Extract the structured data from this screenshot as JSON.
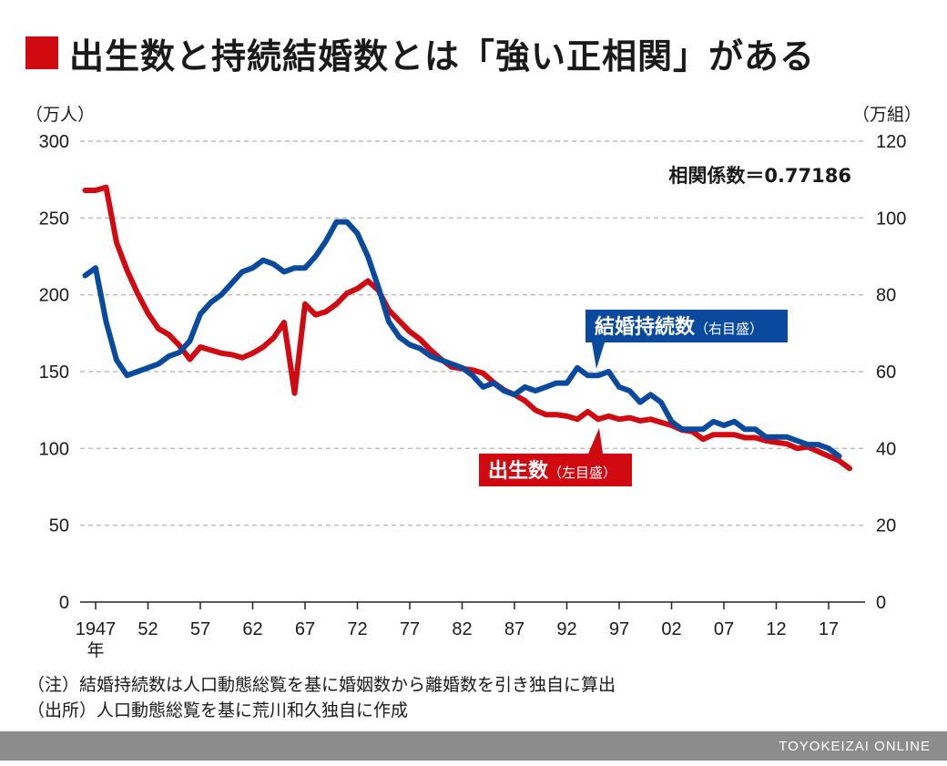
{
  "header": {
    "title": "出生数と持続結婚数とは「強い正相関」がある",
    "accent_color": "#d10a11"
  },
  "chart_data": {
    "type": "line",
    "correlation_text": "相関係数＝0.77186",
    "left_axis": {
      "unit_label": "（万人）",
      "ylim": [
        0,
        300
      ],
      "ticks": [
        0,
        50,
        100,
        150,
        200,
        250,
        300
      ]
    },
    "right_axis": {
      "unit_label": "（万組）",
      "ylim": [
        0,
        120
      ],
      "ticks": [
        0,
        20,
        40,
        60,
        80,
        100,
        120
      ]
    },
    "x_axis": {
      "range": [
        1947,
        2019
      ],
      "tick_values": [
        1947,
        1952,
        1957,
        1962,
        1967,
        1972,
        1977,
        1982,
        1987,
        1992,
        1997,
        2002,
        2007,
        2012,
        2017
      ],
      "tick_labels": [
        "1947",
        "52",
        "57",
        "62",
        "67",
        "72",
        "77",
        "82",
        "87",
        "92",
        "97",
        "02",
        "07",
        "12",
        "17"
      ],
      "first_label_suffix": "年"
    },
    "grid": true,
    "series": [
      {
        "name": "出生数",
        "label_main": "出生数",
        "label_sub": "（左目盛）",
        "axis": "left",
        "color": "#d10a11",
        "x": [
          1946,
          1947,
          1948,
          1949,
          1950,
          1951,
          1952,
          1953,
          1954,
          1955,
          1956,
          1957,
          1958,
          1959,
          1960,
          1961,
          1962,
          1963,
          1964,
          1965,
          1966,
          1967,
          1968,
          1969,
          1970,
          1971,
          1972,
          1973,
          1974,
          1975,
          1976,
          1977,
          1978,
          1979,
          1980,
          1981,
          1982,
          1983,
          1984,
          1985,
          1986,
          1987,
          1988,
          1989,
          1990,
          1991,
          1992,
          1993,
          1994,
          1995,
          1996,
          1997,
          1998,
          1999,
          2000,
          2001,
          2002,
          2003,
          2004,
          2005,
          2006,
          2007,
          2008,
          2009,
          2010,
          2011,
          2012,
          2013,
          2014,
          2015,
          2016,
          2017,
          2018,
          2019
        ],
        "values": [
          268,
          268,
          270,
          234,
          216,
          201,
          188,
          178,
          174,
          167,
          158,
          166,
          164,
          162,
          161,
          159,
          162,
          166,
          172,
          182,
          136,
          194,
          187,
          189,
          194,
          201,
          204,
          209,
          203,
          190,
          183,
          176,
          171,
          164,
          158,
          153,
          152,
          151,
          149,
          143,
          138,
          135,
          131,
          125,
          122,
          122,
          121,
          119,
          124,
          119,
          121,
          119,
          120,
          118,
          119,
          117,
          115,
          112,
          111,
          106,
          109,
          109,
          109,
          107,
          107,
          105,
          104,
          103,
          100,
          101,
          98,
          95,
          92,
          87
        ]
      },
      {
        "name": "結婚持続数",
        "label_main": "結婚持続数",
        "label_sub": "（右目盛）",
        "axis": "right",
        "color": "#0a4a9e",
        "x": [
          1946,
          1947,
          1948,
          1949,
          1950,
          1951,
          1952,
          1953,
          1954,
          1955,
          1956,
          1957,
          1958,
          1959,
          1960,
          1961,
          1962,
          1963,
          1964,
          1965,
          1966,
          1967,
          1968,
          1969,
          1970,
          1971,
          1972,
          1973,
          1974,
          1975,
          1976,
          1977,
          1978,
          1979,
          1980,
          1981,
          1982,
          1983,
          1984,
          1985,
          1986,
          1987,
          1988,
          1989,
          1990,
          1991,
          1992,
          1993,
          1994,
          1995,
          1996,
          1997,
          1998,
          1999,
          2000,
          2001,
          2002,
          2003,
          2004,
          2005,
          2006,
          2007,
          2008,
          2009,
          2010,
          2011,
          2012,
          2013,
          2014,
          2015,
          2016,
          2017,
          2018
        ],
        "values": [
          85,
          87,
          73,
          63,
          59,
          60,
          61,
          62,
          64,
          65,
          68,
          75,
          78,
          80,
          83,
          86,
          87,
          89,
          88,
          86,
          87,
          87,
          90,
          94,
          99,
          99,
          96,
          90,
          82,
          73,
          69,
          67,
          66,
          64,
          63,
          62,
          61,
          59,
          56,
          57,
          55,
          54,
          56,
          55,
          56,
          57,
          57,
          61,
          59,
          59,
          60,
          56,
          55,
          52,
          54,
          52,
          47,
          45,
          45,
          45,
          47,
          46,
          47,
          45,
          45,
          43,
          43,
          43,
          42,
          41,
          41,
          40,
          38
        ]
      }
    ]
  },
  "notes": {
    "line1": "（注）結婚持続数は人口動態総覧を基に婚姻数から離婚数を引き独自に算出",
    "line2": "（出所）人口動態総覧を基に荒川和久独自に作成"
  },
  "footer": {
    "brand": "TOYOKEIZAI ONLINE"
  }
}
